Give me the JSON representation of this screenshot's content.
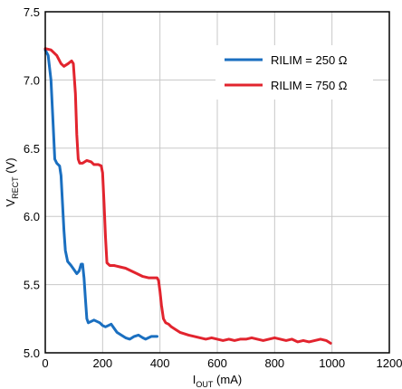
{
  "chart_data": {
    "type": "line",
    "xlabel": {
      "main": "I",
      "sub": "OUT",
      "unit": " (mA)"
    },
    "ylabel": {
      "main": "V",
      "sub": "RECT",
      "unit": " (V)"
    },
    "xlim": [
      0,
      1200
    ],
    "ylim": [
      5.0,
      7.5
    ],
    "xticks": [
      "0",
      "200",
      "400",
      "600",
      "800",
      "1000",
      "1200"
    ],
    "yticks": [
      "5.0",
      "5.5",
      "6.0",
      "6.5",
      "7.0",
      "7.5"
    ],
    "xtick_values": [
      0,
      200,
      400,
      600,
      800,
      1000,
      1200
    ],
    "ytick_values": [
      5.0,
      5.5,
      6.0,
      6.5,
      7.0,
      7.5
    ],
    "grid": true,
    "legend_position": "top-right",
    "series": [
      {
        "name": "RILIM = 250 Ω",
        "color": "#1a6fc0",
        "points": [
          [
            0,
            7.22
          ],
          [
            10,
            7.18
          ],
          [
            20,
            7.0
          ],
          [
            27,
            6.7
          ],
          [
            33,
            6.42
          ],
          [
            40,
            6.39
          ],
          [
            50,
            6.37
          ],
          [
            55,
            6.3
          ],
          [
            60,
            6.1
          ],
          [
            65,
            5.9
          ],
          [
            70,
            5.75
          ],
          [
            78,
            5.67
          ],
          [
            90,
            5.64
          ],
          [
            100,
            5.61
          ],
          [
            110,
            5.58
          ],
          [
            118,
            5.6
          ],
          [
            125,
            5.65
          ],
          [
            130,
            5.65
          ],
          [
            135,
            5.55
          ],
          [
            140,
            5.4
          ],
          [
            145,
            5.25
          ],
          [
            150,
            5.22
          ],
          [
            160,
            5.23
          ],
          [
            170,
            5.24
          ],
          [
            180,
            5.23
          ],
          [
            190,
            5.22
          ],
          [
            200,
            5.2
          ],
          [
            210,
            5.19
          ],
          [
            220,
            5.2
          ],
          [
            230,
            5.21
          ],
          [
            240,
            5.18
          ],
          [
            250,
            5.15
          ],
          [
            265,
            5.13
          ],
          [
            280,
            5.11
          ],
          [
            295,
            5.1
          ],
          [
            310,
            5.12
          ],
          [
            325,
            5.13
          ],
          [
            340,
            5.11
          ],
          [
            350,
            5.1
          ],
          [
            360,
            5.11
          ],
          [
            370,
            5.12
          ],
          [
            380,
            5.12
          ],
          [
            390,
            5.12
          ]
        ]
      },
      {
        "name": "RILIM = 750 Ω",
        "color": "#e2242e",
        "points": [
          [
            0,
            7.23
          ],
          [
            20,
            7.22
          ],
          [
            40,
            7.18
          ],
          [
            55,
            7.12
          ],
          [
            65,
            7.1
          ],
          [
            80,
            7.12
          ],
          [
            92,
            7.14
          ],
          [
            98,
            7.12
          ],
          [
            105,
            6.9
          ],
          [
            110,
            6.6
          ],
          [
            115,
            6.42
          ],
          [
            120,
            6.39
          ],
          [
            130,
            6.39
          ],
          [
            145,
            6.41
          ],
          [
            160,
            6.4
          ],
          [
            170,
            6.38
          ],
          [
            185,
            6.38
          ],
          [
            195,
            6.37
          ],
          [
            200,
            6.32
          ],
          [
            205,
            6.1
          ],
          [
            210,
            5.85
          ],
          [
            215,
            5.66
          ],
          [
            225,
            5.64
          ],
          [
            240,
            5.64
          ],
          [
            260,
            5.63
          ],
          [
            280,
            5.62
          ],
          [
            300,
            5.6
          ],
          [
            320,
            5.58
          ],
          [
            340,
            5.56
          ],
          [
            360,
            5.55
          ],
          [
            375,
            5.55
          ],
          [
            390,
            5.55
          ],
          [
            395,
            5.53
          ],
          [
            400,
            5.45
          ],
          [
            405,
            5.35
          ],
          [
            412,
            5.25
          ],
          [
            420,
            5.22
          ],
          [
            430,
            5.21
          ],
          [
            440,
            5.19
          ],
          [
            455,
            5.17
          ],
          [
            470,
            5.15
          ],
          [
            485,
            5.14
          ],
          [
            500,
            5.13
          ],
          [
            520,
            5.12
          ],
          [
            540,
            5.11
          ],
          [
            560,
            5.1
          ],
          [
            580,
            5.11
          ],
          [
            600,
            5.1
          ],
          [
            620,
            5.09
          ],
          [
            640,
            5.1
          ],
          [
            660,
            5.09
          ],
          [
            680,
            5.1
          ],
          [
            700,
            5.1
          ],
          [
            720,
            5.11
          ],
          [
            740,
            5.1
          ],
          [
            760,
            5.09
          ],
          [
            780,
            5.1
          ],
          [
            800,
            5.11
          ],
          [
            820,
            5.1
          ],
          [
            840,
            5.09
          ],
          [
            860,
            5.1
          ],
          [
            880,
            5.08
          ],
          [
            900,
            5.09
          ],
          [
            920,
            5.08
          ],
          [
            940,
            5.09
          ],
          [
            960,
            5.1
          ],
          [
            980,
            5.09
          ],
          [
            995,
            5.07
          ]
        ]
      }
    ]
  }
}
